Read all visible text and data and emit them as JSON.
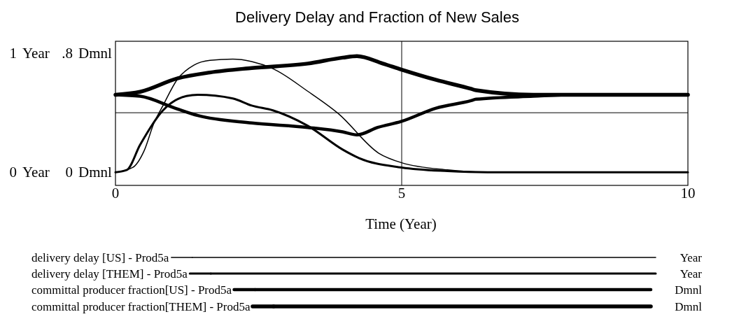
{
  "chart_data": {
    "type": "line",
    "title": "Delivery Delay and Fraction of New Sales",
    "xlabel": "Time (Year)",
    "ylabel": "Year",
    "y2label": "Dmnl",
    "xlim": [
      0,
      10
    ],
    "xticks": [
      0,
      5,
      10
    ],
    "ylim": [
      -0.11,
      1.1
    ],
    "yticks": [
      0,
      1
    ],
    "y2lim": [
      -0.09,
      0.88
    ],
    "y2ticks": [
      0,
      {
        "value": 0.8,
        "label": ".8"
      }
    ],
    "ref_lines": [
      {
        "axis": "x",
        "value": 5
      },
      {
        "axis": "y",
        "value": 0.5
      }
    ],
    "legend": "bottom",
    "annotations": [
      "Year",
      "Year",
      "Dmnl",
      "Dmnl"
    ],
    "series": [
      {
        "name": "delivery delay [US] - Prod5a",
        "color": "#000000",
        "axis": "y",
        "x": [
          0,
          0.3,
          0.5,
          0.67,
          0.83,
          1.08,
          1.37,
          1.65,
          2.05,
          2.38,
          2.75,
          3.36,
          3.9,
          4.6,
          5,
          5.8,
          6.5,
          10
        ],
        "values": [
          0,
          0.04,
          0.18,
          0.41,
          0.56,
          0.78,
          0.9,
          0.94,
          0.95,
          0.93,
          0.87,
          0.68,
          0.49,
          0.16,
          0.08,
          0.02,
          0,
          0
        ]
      },
      {
        "name": "delivery delay [THEM] - Prod5a",
        "color": "#000000",
        "axis": "y",
        "x": [
          0,
          0.2,
          0.43,
          0.83,
          1.24,
          1.44,
          2.05,
          2.38,
          2.75,
          3.36,
          3.97,
          4.25,
          5,
          5.8,
          6.5,
          10
        ],
        "values": [
          0,
          0.02,
          0.23,
          0.52,
          0.64,
          0.65,
          0.62,
          0.56,
          0.52,
          0.39,
          0.19,
          0.12,
          0.04,
          0.01,
          0,
          0
        ]
      },
      {
        "name": "committal producer fraction[US] - Prod5a",
        "color": "#000000",
        "axis": "y2",
        "x": [
          0,
          0.43,
          1.04,
          1.44,
          2.38,
          3.36,
          3.97,
          4.22,
          4.58,
          4.99,
          5.6,
          6.21,
          6.3,
          7.3,
          8,
          10
        ],
        "values": [
          0.52,
          0.51,
          0.43,
          0.38,
          0.33,
          0.3,
          0.27,
          0.25,
          0.3,
          0.34,
          0.43,
          0.48,
          0.49,
          0.51,
          0.52,
          0.52
        ]
      },
      {
        "name": "committal producer fraction[THEM] - Prod5a",
        "color": "#000000",
        "axis": "y2",
        "x": [
          0,
          0.43,
          1.08,
          1.65,
          2.38,
          3.36,
          3.97,
          4.22,
          4.67,
          4.99,
          5.6,
          6.21,
          6.3,
          7.3,
          8,
          10
        ],
        "values": [
          0.52,
          0.54,
          0.63,
          0.67,
          0.7,
          0.73,
          0.77,
          0.78,
          0.73,
          0.69,
          0.62,
          0.56,
          0.55,
          0.52,
          0.52,
          0.52
        ]
      }
    ]
  }
}
